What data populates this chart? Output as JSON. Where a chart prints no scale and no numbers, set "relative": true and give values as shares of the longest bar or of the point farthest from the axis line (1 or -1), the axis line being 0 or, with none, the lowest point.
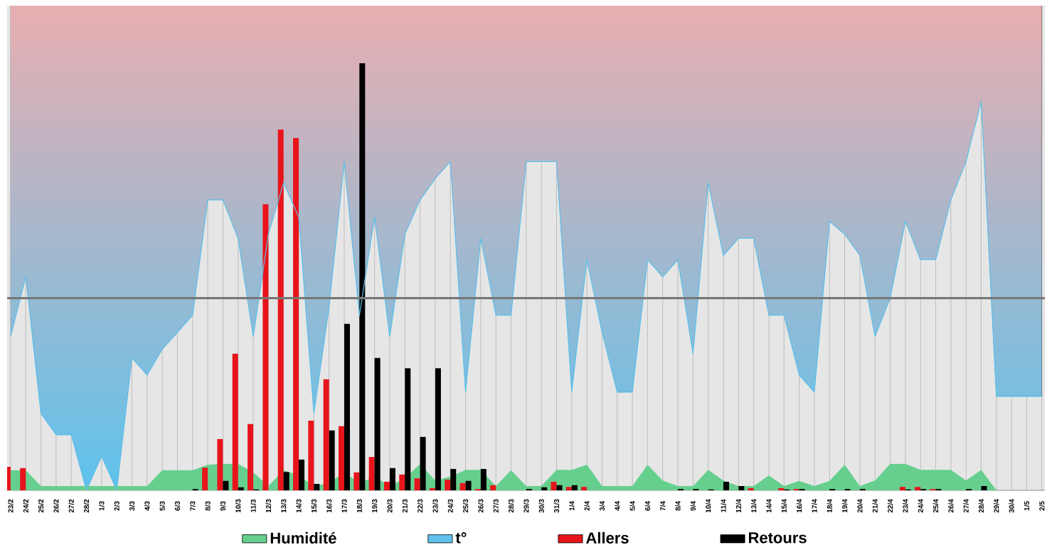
{
  "chart_data": {
    "type": "bar",
    "relative": true,
    "grid": "x",
    "legend": "bottom",
    "categories": [
      "23/2",
      "24/2",
      "25/2",
      "26/2",
      "27/2",
      "28/2",
      "1/3",
      "2/3",
      "3/3",
      "4/3",
      "5/3",
      "6/3",
      "7/3",
      "8/3",
      "9/3",
      "10/3",
      "11/3",
      "12/3",
      "13/3",
      "14/3",
      "15/3",
      "16/3",
      "17/3",
      "18/3",
      "19/3",
      "20/3",
      "21/3",
      "22/3",
      "23/3",
      "24/3",
      "25/3",
      "26/3",
      "27/3",
      "28/3",
      "29/3",
      "30/3",
      "31/3",
      "1/4",
      "2/4",
      "3/4",
      "4/4",
      "5/4",
      "6/4",
      "7/4",
      "8/4",
      "9/4",
      "10/4",
      "11/4",
      "12/4",
      "13/4",
      "14/4",
      "15/4",
      "16/4",
      "17/4",
      "18/4",
      "19/4",
      "20/4",
      "21/4",
      "22/4",
      "23/4",
      "24/4",
      "25/4",
      "26/4",
      "27/4",
      "28/4",
      "29/4",
      "30/4",
      "1/5",
      "2/5"
    ],
    "series": [
      {
        "name": "Humidité",
        "type": "area",
        "color": "#66cf8e",
        "values": [
          0.047,
          0.047,
          0.01,
          0.01,
          0.01,
          0.01,
          0.01,
          0.01,
          0.01,
          0.01,
          0.047,
          0.047,
          0.047,
          0.06,
          0.062,
          0.062,
          0.042,
          0.01,
          0.047,
          0.035,
          0.01,
          0.017,
          0.042,
          0.017,
          0.032,
          0.01,
          0.028,
          0.062,
          0.023,
          0.032,
          0.048,
          0.048,
          0.01,
          0.047,
          0.01,
          0.01,
          0.048,
          0.048,
          0.06,
          0.01,
          0.01,
          0.01,
          0.06,
          0.023,
          0.01,
          0.01,
          0.048,
          0.023,
          0.01,
          0.01,
          0.035,
          0.01,
          0.022,
          0.01,
          0.022,
          0.06,
          0.01,
          0.023,
          0.062,
          0.062,
          0.048,
          0.048,
          0.048,
          0.023,
          0.048,
          0,
          null,
          null,
          null
        ]
      },
      {
        "name": "t°",
        "type": "area",
        "color": "#5ec2ec",
        "values": [
          0.36,
          0.5,
          0.18,
          0.13,
          0.13,
          0,
          0.08,
          0,
          0.31,
          0.27,
          0.33,
          0.37,
          0.41,
          0.68,
          0.68,
          0.59,
          0.36,
          0.6,
          0.72,
          0.64,
          0.18,
          0.43,
          0.77,
          0.41,
          0.64,
          0.36,
          0.6,
          0.68,
          0.73,
          0.77,
          0.23,
          0.59,
          0.41,
          0.41,
          0.77,
          0.77,
          0.77,
          0.23,
          0.54,
          0.37,
          0.23,
          0.23,
          0.54,
          0.5,
          0.54,
          0.32,
          0.72,
          0.55,
          0.59,
          0.59,
          0.41,
          0.41,
          0.27,
          0.23,
          0.63,
          0.6,
          0.55,
          0.36,
          0.45,
          0.63,
          0.54,
          0.54,
          0.68,
          0.77,
          0.91,
          0.22,
          0.22,
          0.22,
          0.22
        ]
      },
      {
        "name": "Allers",
        "type": "bar",
        "color": "#e8141b",
        "values": [
          0.055,
          0.052,
          null,
          null,
          null,
          null,
          null,
          null,
          null,
          null,
          null,
          null,
          null,
          0.053,
          0.12,
          0.32,
          0.155,
          0.67,
          0.845,
          0.825,
          0.163,
          0.26,
          0.15,
          0.042,
          0.078,
          0.02,
          0.037,
          0.028,
          0.005,
          0.025,
          0.017,
          0.003,
          0.012,
          null,
          null,
          null,
          0.02,
          0.008,
          0.008,
          null,
          null,
          null,
          null,
          null,
          null,
          null,
          null,
          null,
          null,
          0.005,
          null,
          0.005,
          0.003,
          null,
          null,
          null,
          null,
          null,
          null,
          0.008,
          0.008,
          0.003,
          null,
          null,
          null,
          null,
          null,
          null,
          null
        ]
      },
      {
        "name": "Retours",
        "type": "bar",
        "color": "#000000",
        "values": [
          null,
          null,
          null,
          null,
          null,
          null,
          null,
          null,
          null,
          null,
          null,
          null,
          0.003,
          null,
          0.022,
          0.007,
          0.002,
          null,
          0.043,
          0.072,
          0.015,
          0.14,
          0.39,
          1.0,
          0.31,
          0.052,
          0.286,
          0.125,
          0.286,
          0.05,
          0.022,
          0.05,
          null,
          null,
          0.003,
          0.007,
          0.012,
          0.012,
          null,
          null,
          null,
          null,
          null,
          null,
          0.003,
          0.003,
          0.002,
          0.02,
          0.01,
          null,
          null,
          0.002,
          0.003,
          null,
          0.003,
          0.003,
          0.003,
          null,
          null,
          0.002,
          0.003,
          0.003,
          null,
          0.003,
          0.01,
          null,
          null,
          null,
          null
        ]
      }
    ],
    "ref_lines": [
      {
        "axis": "y",
        "value": 0.45,
        "color": "#777777"
      }
    ]
  }
}
